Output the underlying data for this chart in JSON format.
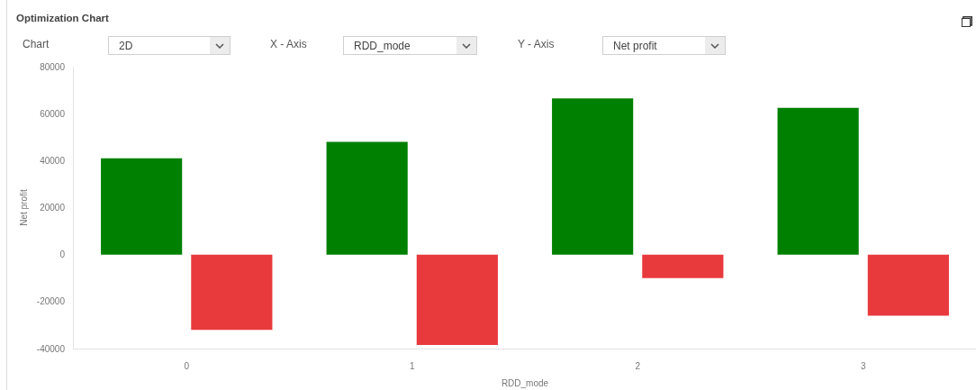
{
  "chart_data": {
    "type": "bar",
    "title": "Optimization Chart",
    "xlabel": "RDD_mode",
    "ylabel": "Net profit",
    "annotations": [
      "Chart",
      "2D",
      "X - Axis",
      "RDD_mode",
      "Y - Axis",
      "Net profit"
    ],
    "categories": [
      "0",
      "1",
      "2",
      "3"
    ],
    "series": [
      {
        "color": "#008000",
        "values": [
          41000,
          48000,
          66500,
          62500
        ]
      },
      {
        "color": "#e8393d",
        "values": [
          -32000,
          -38500,
          -10000,
          -26000
        ]
      }
    ],
    "ylim": [
      -40000,
      80000
    ],
    "yticks": [
      -40000,
      -20000,
      0,
      20000,
      40000,
      60000,
      80000
    ]
  }
}
